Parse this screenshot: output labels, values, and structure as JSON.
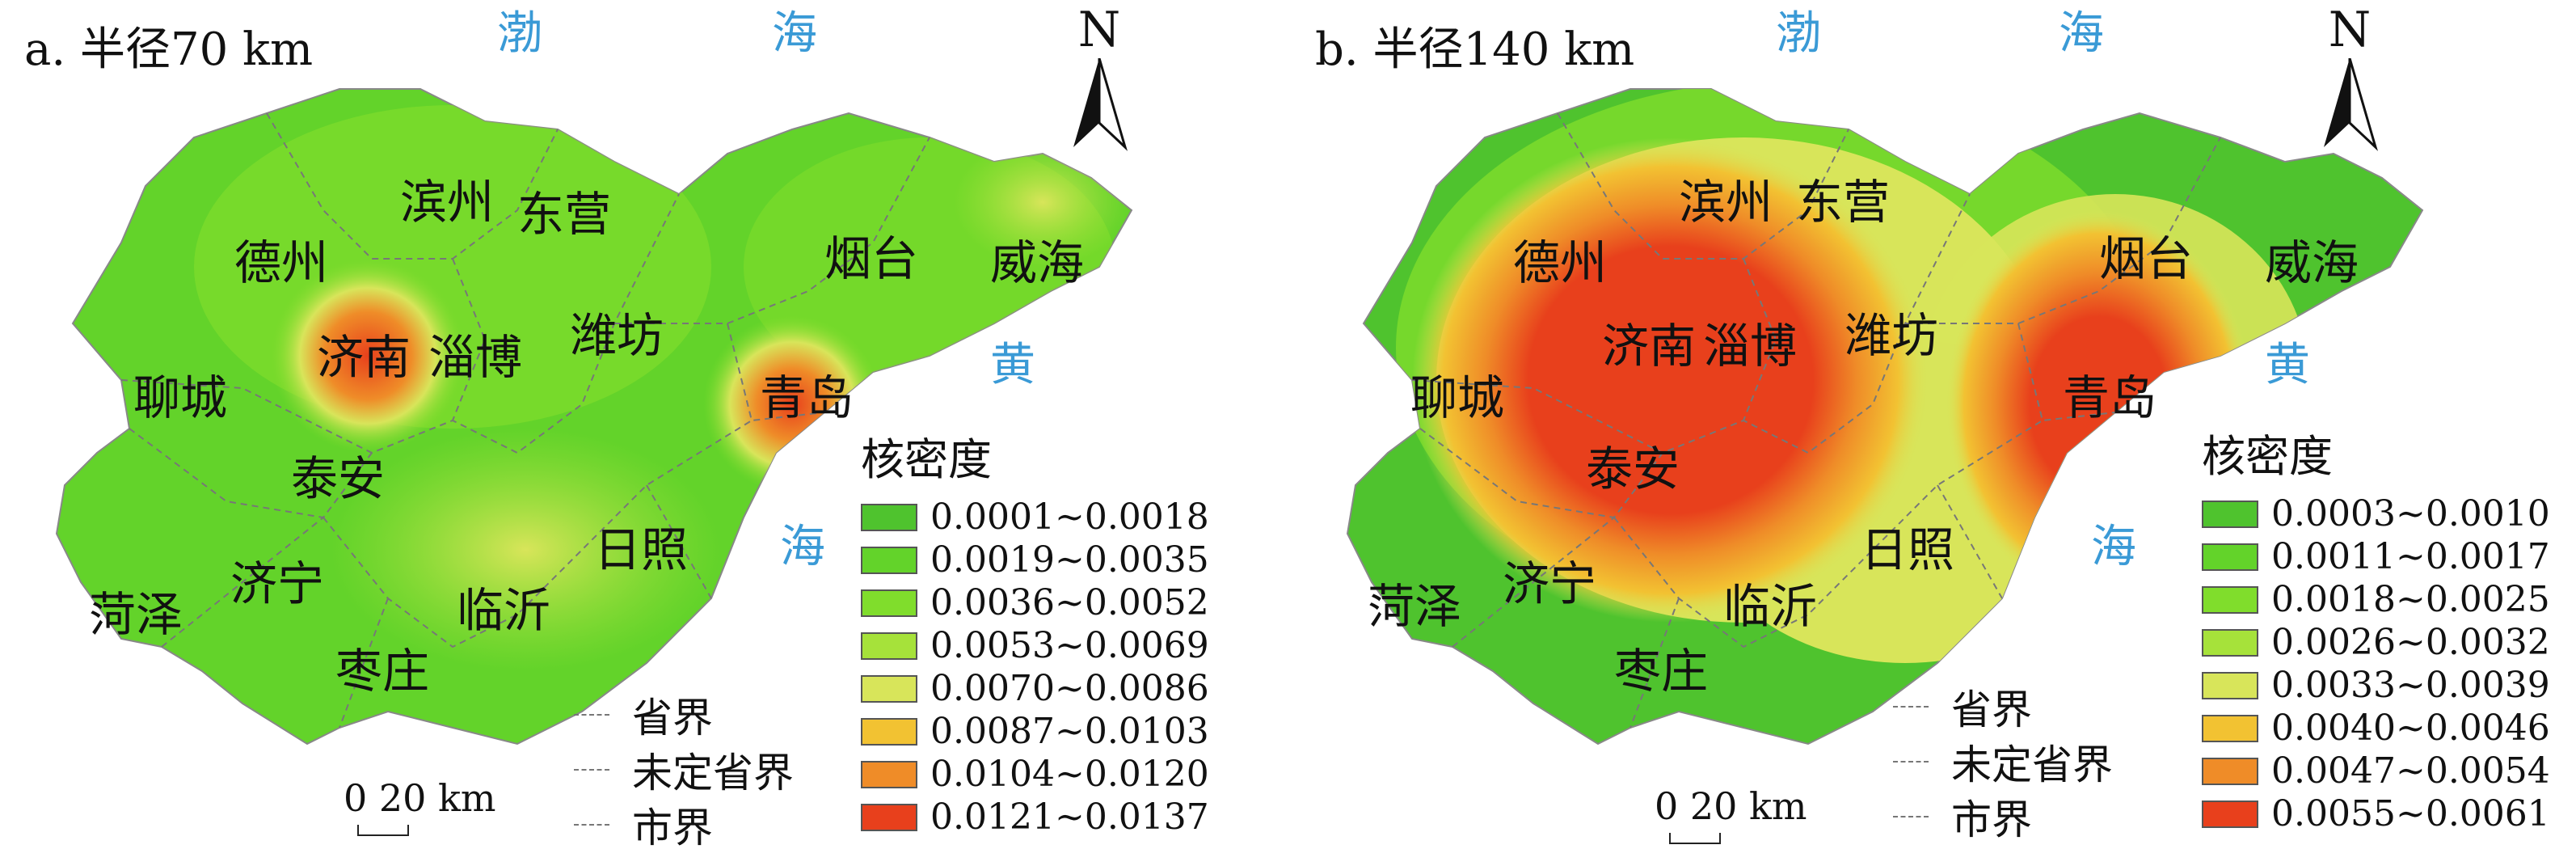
{
  "panels": [
    {
      "title": "a. 半径70 km",
      "legend_title": "核密度",
      "legend": [
        {
          "range": "0.0001~0.0018",
          "color": "#4fc32e"
        },
        {
          "range": "0.0019~0.0035",
          "color": "#63d32a"
        },
        {
          "range": "0.0036~0.0052",
          "color": "#80dd2c"
        },
        {
          "range": "0.0053~0.0069",
          "color": "#a6e23a"
        },
        {
          "range": "0.0070~0.0086",
          "color": "#d8e55a"
        },
        {
          "range": "0.0087~0.0103",
          "color": "#f2c232"
        },
        {
          "range": "0.0104~0.0120",
          "color": "#ef8c28"
        },
        {
          "range": "0.0121~0.0137",
          "color": "#e8401c"
        }
      ],
      "scale": "0 20 km",
      "north": "N"
    },
    {
      "title": "b. 半径140 km",
      "legend_title": "核密度",
      "legend": [
        {
          "range": "0.0003~0.0010",
          "color": "#4fc32e"
        },
        {
          "range": "0.0011~0.0017",
          "color": "#63d32a"
        },
        {
          "range": "0.0018~0.0025",
          "color": "#80dd2c"
        },
        {
          "range": "0.0026~0.0032",
          "color": "#a6e23a"
        },
        {
          "range": "0.0033~0.0039",
          "color": "#d8e55a"
        },
        {
          "range": "0.0040~0.0046",
          "color": "#f2c232"
        },
        {
          "range": "0.0047~0.0054",
          "color": "#ef8c28"
        },
        {
          "range": "0.0055~0.0061",
          "color": "#e8401c"
        }
      ],
      "scale": "0 20 km",
      "north": "N"
    }
  ],
  "boundary_legend": [
    "省界",
    "未定省界",
    "市界"
  ],
  "cities": [
    "滨州",
    "东营",
    "德州",
    "烟台",
    "威海",
    "济南",
    "淄博",
    "潍坊",
    "聊城",
    "青岛",
    "泰安",
    "日照",
    "济宁",
    "菏泽",
    "临沂",
    "枣庄"
  ],
  "seas": [
    "渤",
    "海",
    "黄",
    "海"
  ]
}
